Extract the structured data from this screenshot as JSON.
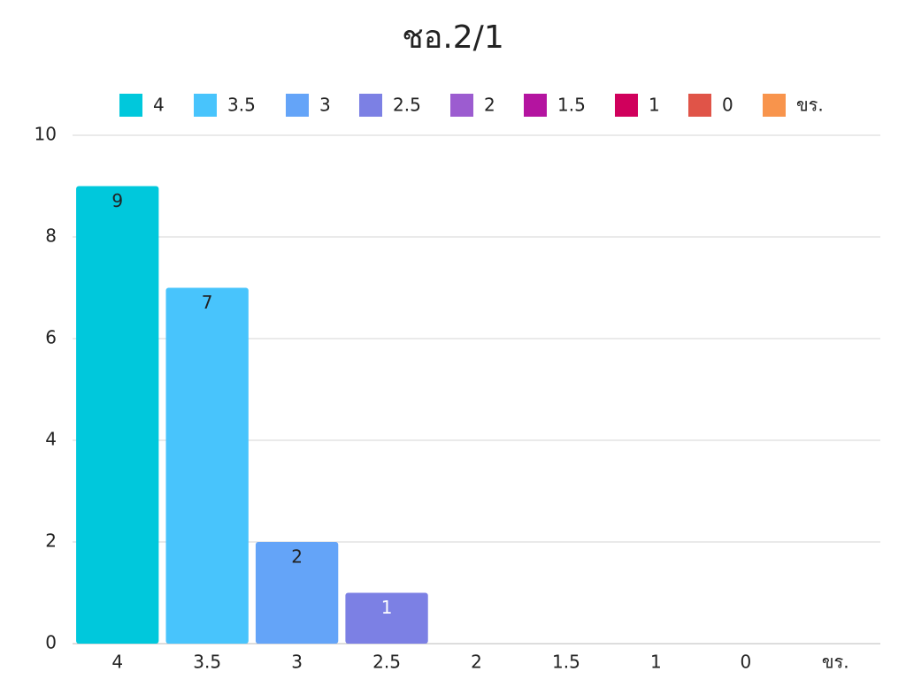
{
  "chart_data": {
    "type": "bar",
    "title": "ชอ.2/1",
    "categories": [
      "4",
      "3.5",
      "3",
      "2.5",
      "2",
      "1.5",
      "1",
      "0",
      "ขร."
    ],
    "values": [
      9,
      7,
      2,
      1,
      0,
      0,
      0,
      0,
      0
    ],
    "colors": [
      "#00c8dc",
      "#48c4fc",
      "#64a4f8",
      "#7c80e4",
      "#9c5cd0",
      "#b414a0",
      "#d0005c",
      "#e05448",
      "#f8944c"
    ],
    "ylim": [
      0,
      10
    ],
    "yticks": [
      0,
      2,
      4,
      6,
      8,
      10
    ],
    "grid": true,
    "legend": "top"
  }
}
